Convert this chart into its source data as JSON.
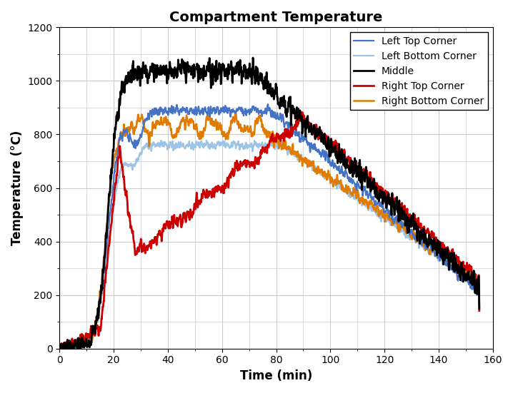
{
  "title": "Compartment Temperature",
  "xlabel": "Time (min)",
  "ylabel": "Temperature (°C)",
  "xlim": [
    0,
    160
  ],
  "ylim": [
    0,
    1200
  ],
  "xticks": [
    0,
    20,
    40,
    60,
    80,
    100,
    120,
    140,
    160
  ],
  "yticks": [
    0,
    200,
    400,
    600,
    800,
    1000,
    1200
  ],
  "series": {
    "Left Top Corner": {
      "color": "#4472C4",
      "lw": 1.6,
      "zorder": 4
    },
    "Left Bottom Corner": {
      "color": "#9DC3E6",
      "lw": 1.6,
      "zorder": 3
    },
    "Middle": {
      "color": "#000000",
      "lw": 2.0,
      "zorder": 5
    },
    "Right Top Corner": {
      "color": "#CC0000",
      "lw": 2.0,
      "zorder": 4
    },
    "Right Bottom Corner": {
      "color": "#E07B00",
      "lw": 1.8,
      "zorder": 3
    }
  },
  "legend_loc": "upper right",
  "grid_color": "#CCCCCC",
  "fig_bg": "#FFFFFF",
  "title_fontsize": 14,
  "label_fontsize": 12,
  "tick_fontsize": 10,
  "legend_fontsize": 10
}
